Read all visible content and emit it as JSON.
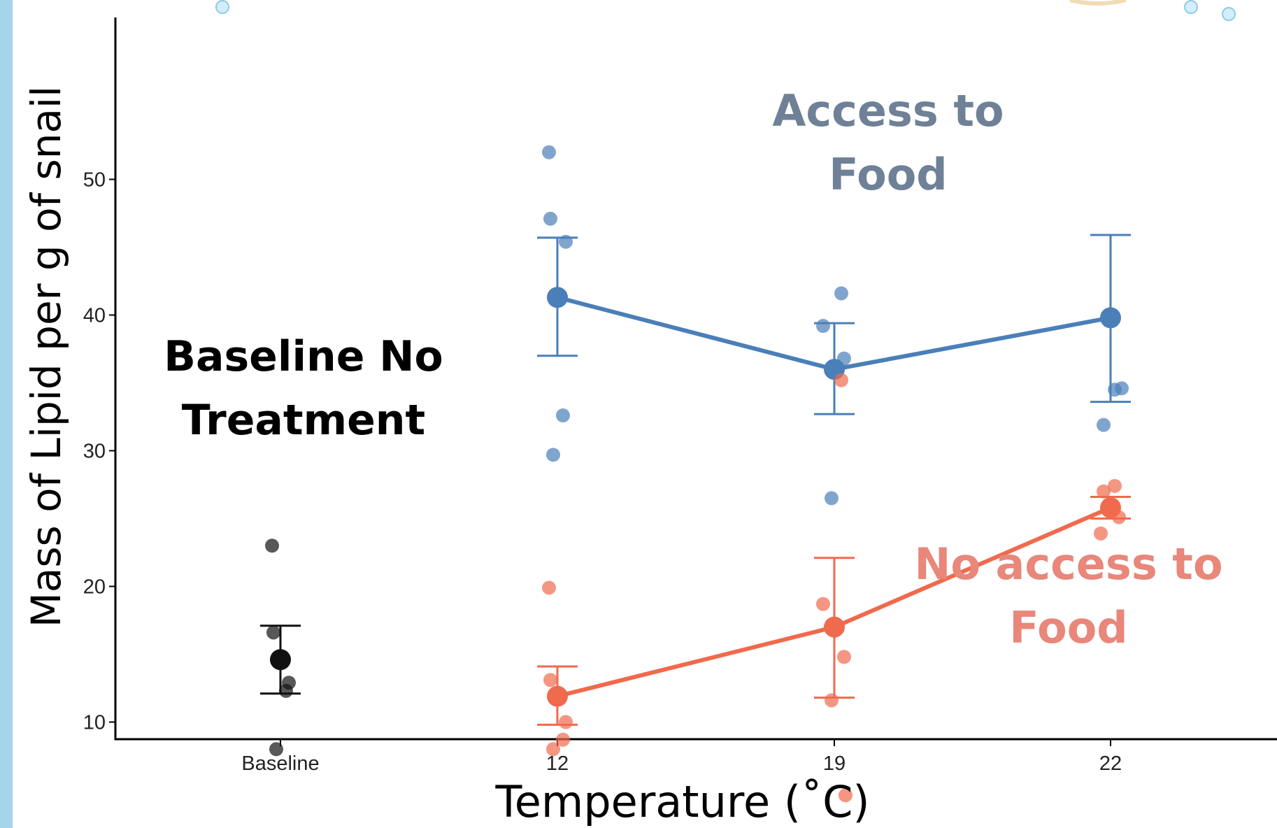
{
  "colors": {
    "food": "#4a7fb8",
    "no_food": "#f06a4d",
    "baseline": "#111111",
    "annot_food": "#6f8196",
    "annot_no_food": "#e8877a",
    "annot_baseline": "#000000",
    "stripe": "#a5d5ea"
  },
  "chart_data": {
    "type": "scatter",
    "xlabel": "Temperature (˚C)",
    "ylabel": "Mass of Lipid per g of snail",
    "categories": [
      "Baseline",
      "12",
      "19",
      "22"
    ],
    "ylim": [
      2.5,
      55
    ],
    "yticks": [
      10,
      20,
      30,
      40,
      50
    ],
    "grid": false,
    "series": [
      {
        "key": "baseline",
        "name": "",
        "mean": [
          {
            "x": "Baseline",
            "y": 14.6,
            "lo": 12.1,
            "hi": 17.1
          }
        ],
        "points": [
          {
            "x": "Baseline",
            "y": 23.0
          },
          {
            "x": "Baseline",
            "y": 16.6
          },
          {
            "x": "Baseline",
            "y": 12.9
          },
          {
            "x": "Baseline",
            "y": 12.3
          },
          {
            "x": "Baseline",
            "y": 8.0
          }
        ],
        "connect": false
      },
      {
        "key": "food",
        "name": "",
        "mean": [
          {
            "x": "12",
            "y": 41.3,
            "lo": 37.0,
            "hi": 45.7
          },
          {
            "x": "19",
            "y": 36.0,
            "lo": 32.7,
            "hi": 39.4
          },
          {
            "x": "22",
            "y": 39.8,
            "lo": 33.6,
            "hi": 45.9
          }
        ],
        "points": [
          {
            "x": "12",
            "y": 52.0
          },
          {
            "x": "12",
            "y": 47.1
          },
          {
            "x": "12",
            "y": 45.4
          },
          {
            "x": "12",
            "y": 32.6
          },
          {
            "x": "12",
            "y": 29.7
          },
          {
            "x": "19",
            "y": 41.6
          },
          {
            "x": "19",
            "y": 39.2
          },
          {
            "x": "19",
            "y": 36.8
          },
          {
            "x": "19",
            "y": 26.5
          },
          {
            "x": "22",
            "y": 34.6
          },
          {
            "x": "22",
            "y": 34.5
          },
          {
            "x": "22",
            "y": 31.9
          }
        ],
        "connect": true
      },
      {
        "key": "no_food",
        "name": "",
        "mean": [
          {
            "x": "12",
            "y": 11.9,
            "lo": 9.8,
            "hi": 14.1
          },
          {
            "x": "19",
            "y": 17.0,
            "lo": 11.8,
            "hi": 22.1
          },
          {
            "x": "22",
            "y": 25.8,
            "lo": 25.0,
            "hi": 26.6
          }
        ],
        "points": [
          {
            "x": "12",
            "y": 19.9
          },
          {
            "x": "12",
            "y": 13.1
          },
          {
            "x": "12",
            "y": 10.0
          },
          {
            "x": "12",
            "y": 8.7
          },
          {
            "x": "12",
            "y": 8.0
          },
          {
            "x": "19",
            "y": 35.2
          },
          {
            "x": "19",
            "y": 18.7
          },
          {
            "x": "19",
            "y": 14.8
          },
          {
            "x": "19",
            "y": 11.6
          },
          {
            "x": "19",
            "y": 4.6
          },
          {
            "x": "22",
            "y": 27.4
          },
          {
            "x": "22",
            "y": 27.0
          },
          {
            "x": "22",
            "y": 25.1
          },
          {
            "x": "22",
            "y": 23.9
          }
        ],
        "connect": true
      }
    ],
    "annotations": [
      {
        "key": "food",
        "lines": [
          "Access to",
          "Food"
        ]
      },
      {
        "key": "no_food",
        "lines": [
          "No access to",
          "Food"
        ]
      },
      {
        "key": "baseline",
        "lines": [
          "Baseline No",
          "Treatment"
        ]
      }
    ]
  }
}
